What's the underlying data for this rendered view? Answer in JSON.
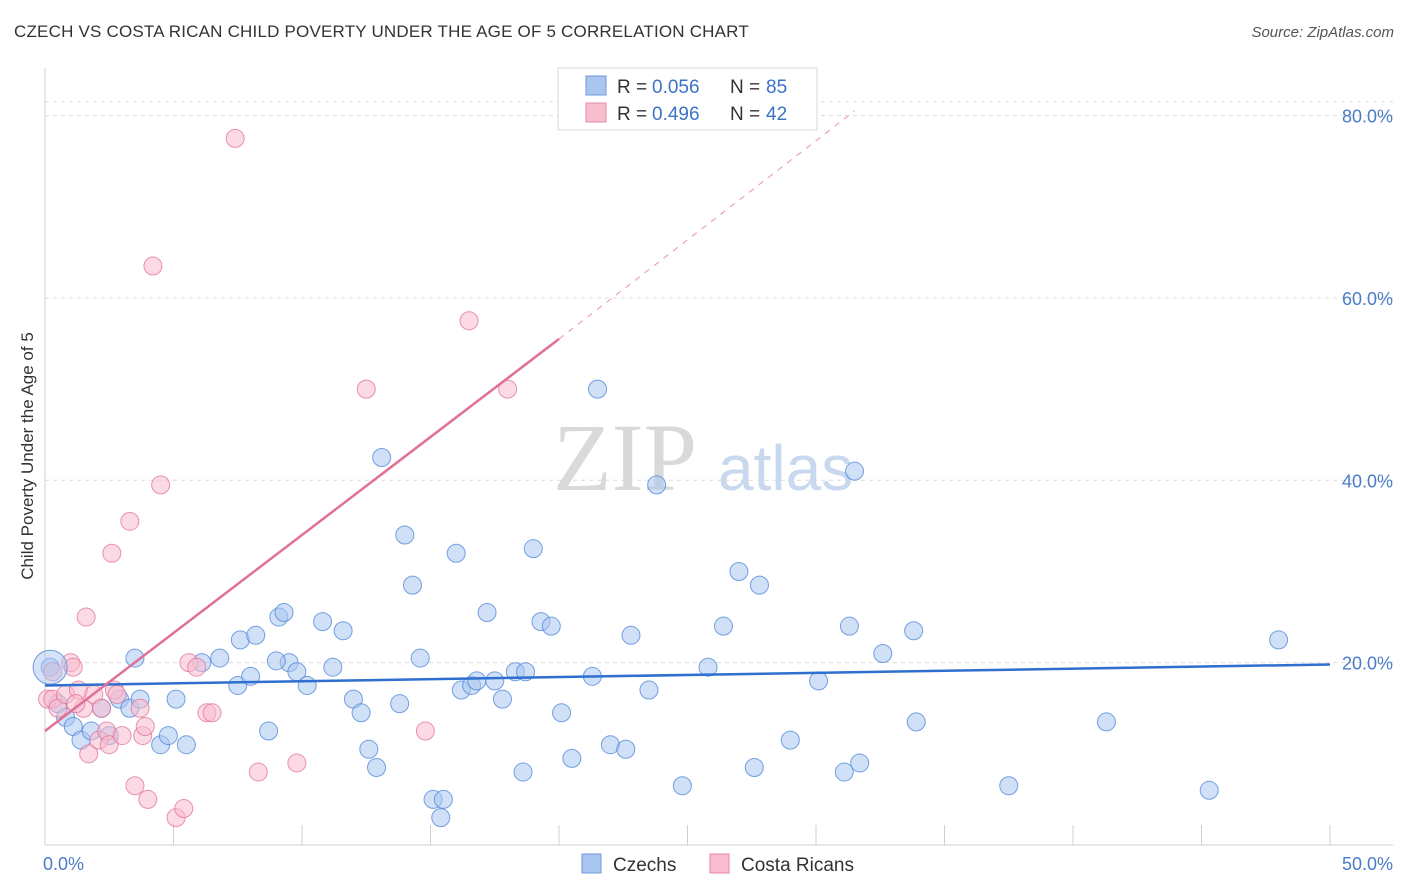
{
  "title": "CZECH VS COSTA RICAN CHILD POVERTY UNDER THE AGE OF 5 CORRELATION CHART",
  "source": "Source: ZipAtlas.com",
  "watermark": {
    "zip": "ZIP",
    "atlas": "atlas"
  },
  "legend": {
    "rows": [
      {
        "r_label": "R =",
        "r_value": "0.056",
        "n_label": "N =",
        "n_value": "85",
        "color": "#a9c6f0",
        "stroke": "#6f9ad8"
      },
      {
        "r_label": "R =",
        "r_value": "0.496",
        "n_label": "N =",
        "n_value": "42",
        "color": "#f7bccd",
        "stroke": "#e58aa5"
      }
    ],
    "bottom": [
      {
        "label": "Czechs",
        "color": "#a9c6f0",
        "stroke": "#6f9ad8"
      },
      {
        "label": "Costa Ricans",
        "color": "#f7bccd",
        "stroke": "#e58aa5"
      }
    ]
  },
  "chart_data": {
    "type": "scatter",
    "title": "CZECH VS COSTA RICAN CHILD POVERTY UNDER THE AGE OF 5 CORRELATION CHART",
    "xlabel": "",
    "ylabel": "Child Poverty Under the Age of 5",
    "xlim": [
      0,
      50
    ],
    "ylim": [
      0,
      85
    ],
    "x_tick_labels": [
      "0.0%",
      "50.0%"
    ],
    "y_ticks": [
      20,
      40,
      60,
      80
    ],
    "y_tick_labels": [
      "20.0%",
      "40.0%",
      "60.0%",
      "80.0%"
    ],
    "series": [
      {
        "name": "Czechs",
        "color": "#4a84d8",
        "fill": "#a9c6f0",
        "trend": {
          "x": [
            0,
            50
          ],
          "y": [
            17.5,
            19.8
          ],
          "color": "#2e6fd0"
        },
        "points": [
          [
            0.2,
            19.5
          ],
          [
            0.5,
            15.5
          ],
          [
            0.8,
            14
          ],
          [
            1.1,
            13
          ],
          [
            1.4,
            11.5
          ],
          [
            1.8,
            12.5
          ],
          [
            2.2,
            15
          ],
          [
            2.5,
            12
          ],
          [
            2.9,
            16
          ],
          [
            3.3,
            15
          ],
          [
            3.5,
            20.5
          ],
          [
            3.7,
            16
          ],
          [
            4.5,
            11
          ],
          [
            4.8,
            12
          ],
          [
            5.1,
            16
          ],
          [
            5.5,
            11
          ],
          [
            6.1,
            20
          ],
          [
            6.8,
            20.5
          ],
          [
            7.5,
            17.5
          ],
          [
            7.6,
            22.5
          ],
          [
            8.0,
            18.5
          ],
          [
            8.2,
            23
          ],
          [
            8.7,
            12.5
          ],
          [
            9.1,
            25
          ],
          [
            9.3,
            25.5
          ],
          [
            9.5,
            20
          ],
          [
            9.8,
            19
          ],
          [
            10.2,
            17.5
          ],
          [
            10.8,
            24.5
          ],
          [
            11.2,
            19.5
          ],
          [
            11.6,
            23.5
          ],
          [
            12.0,
            16
          ],
          [
            12.3,
            14.5
          ],
          [
            12.6,
            10.5
          ],
          [
            12.9,
            8.5
          ],
          [
            13.1,
            42.5
          ],
          [
            13.8,
            15.5
          ],
          [
            14.0,
            34
          ],
          [
            14.3,
            28.5
          ],
          [
            14.6,
            20.5
          ],
          [
            15.1,
            5
          ],
          [
            15.4,
            3
          ],
          [
            15.5,
            5
          ],
          [
            16.0,
            32
          ],
          [
            16.2,
            17
          ],
          [
            16.6,
            17.5
          ],
          [
            16.8,
            18
          ],
          [
            17.2,
            25.5
          ],
          [
            17.5,
            18
          ],
          [
            17.8,
            16
          ],
          [
            18.3,
            19
          ],
          [
            18.6,
            8
          ],
          [
            19.0,
            32.5
          ],
          [
            19.3,
            24.5
          ],
          [
            19.7,
            24
          ],
          [
            20.1,
            14.5
          ],
          [
            20.5,
            9.5
          ],
          [
            21.3,
            18.5
          ],
          [
            21.5,
            50
          ],
          [
            22.0,
            11
          ],
          [
            22.6,
            10.5
          ],
          [
            23.5,
            17
          ],
          [
            23.8,
            39.5
          ],
          [
            24.8,
            6.5
          ],
          [
            25.8,
            19.5
          ],
          [
            26.4,
            24
          ],
          [
            27.0,
            30
          ],
          [
            27.6,
            8.5
          ],
          [
            27.8,
            28.5
          ],
          [
            29.0,
            11.5
          ],
          [
            30.1,
            18
          ],
          [
            31.1,
            8
          ],
          [
            31.3,
            24
          ],
          [
            31.5,
            41
          ],
          [
            31.7,
            9
          ],
          [
            32.6,
            21
          ],
          [
            33.8,
            23.5
          ],
          [
            33.9,
            13.5
          ],
          [
            37.5,
            6.5
          ],
          [
            41.3,
            13.5
          ],
          [
            45.3,
            6
          ],
          [
            48.0,
            22.5
          ],
          [
            18.7,
            19
          ],
          [
            22.8,
            23
          ],
          [
            9.0,
            20.2
          ]
        ]
      },
      {
        "name": "Costa Ricans",
        "color": "#e0709a",
        "fill": "#f7bccd",
        "trend": {
          "x": [
            0,
            20
          ],
          "y": [
            12.5,
            55.5
          ],
          "color": "#e0709a",
          "extrap": {
            "x": [
              20,
              31.5
            ],
            "y": [
              55.5,
              80.5
            ]
          }
        },
        "points": [
          [
            0.1,
            16
          ],
          [
            0.3,
            16
          ],
          [
            0.5,
            15
          ],
          [
            0.8,
            16.5
          ],
          [
            1.0,
            20
          ],
          [
            1.1,
            19.5
          ],
          [
            1.3,
            17
          ],
          [
            1.5,
            15
          ],
          [
            1.6,
            25
          ],
          [
            1.7,
            10
          ],
          [
            1.9,
            16.5
          ],
          [
            2.1,
            11.5
          ],
          [
            2.2,
            15
          ],
          [
            2.4,
            12.5
          ],
          [
            2.5,
            11
          ],
          [
            2.6,
            32
          ],
          [
            2.7,
            17
          ],
          [
            3.0,
            12
          ],
          [
            3.3,
            35.5
          ],
          [
            3.5,
            6.5
          ],
          [
            3.7,
            15
          ],
          [
            3.8,
            12
          ],
          [
            3.9,
            13
          ],
          [
            4.0,
            5
          ],
          [
            4.2,
            63.5
          ],
          [
            4.5,
            39.5
          ],
          [
            5.1,
            3
          ],
          [
            5.4,
            4
          ],
          [
            5.6,
            20
          ],
          [
            5.9,
            19.5
          ],
          [
            6.3,
            14.5
          ],
          [
            6.5,
            14.5
          ],
          [
            7.4,
            77.5
          ],
          [
            8.3,
            8
          ],
          [
            9.8,
            9
          ],
          [
            12.5,
            50
          ],
          [
            14.8,
            12.5
          ],
          [
            16.5,
            57.5
          ],
          [
            18.0,
            50
          ],
          [
            0.3,
            19
          ],
          [
            1.2,
            15.5
          ],
          [
            2.8,
            16.5
          ]
        ]
      }
    ]
  }
}
